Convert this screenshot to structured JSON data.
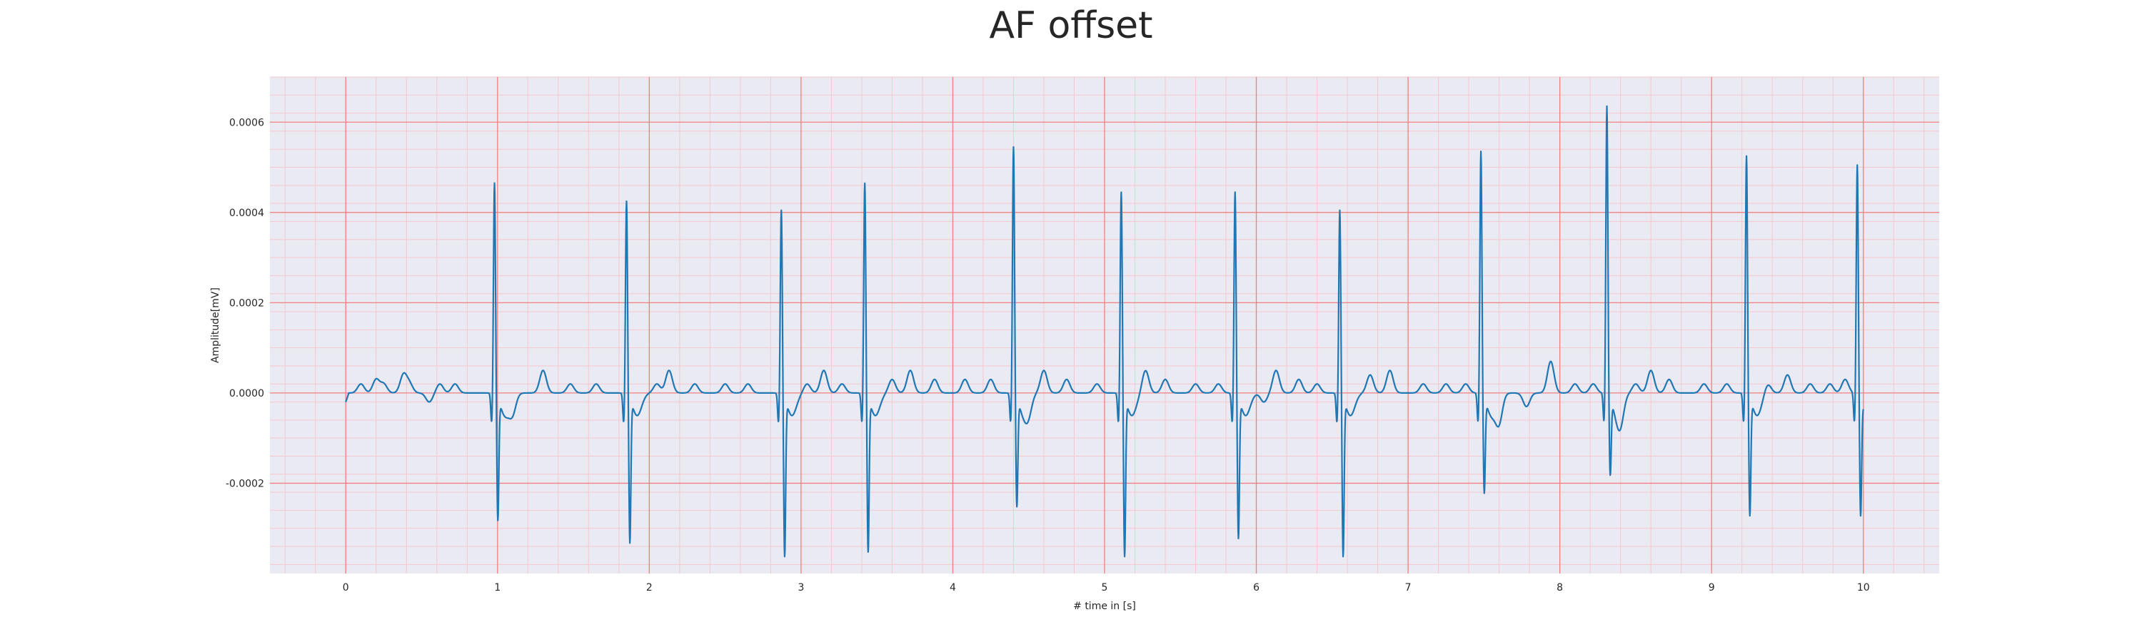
{
  "chart_data": {
    "type": "line",
    "title": "AF offset",
    "xlabel": "# time in [s]",
    "ylabel": "Amplitude[mV]",
    "xlim": [
      -0.5,
      10.5
    ],
    "ylim": [
      -0.0004,
      0.0007
    ],
    "xticks": [
      0,
      1,
      2,
      3,
      4,
      5,
      6,
      7,
      8,
      9,
      10
    ],
    "xtick_labels": [
      "0",
      "1",
      "2",
      "3",
      "4",
      "5",
      "6",
      "7",
      "8",
      "9",
      "10"
    ],
    "yticks": [
      -0.0002,
      0.0,
      0.0002,
      0.0004,
      0.0006
    ],
    "ytick_labels": [
      "-0.0002",
      "0.0000",
      "0.0002",
      "0.0004",
      "0.0006"
    ],
    "grid": true,
    "minor_grid": true,
    "colors": {
      "line": "#1f77b4",
      "background": "#eaeaf2",
      "major_grid": "#f08080",
      "minor_grid": "#f6c6cf"
    },
    "series": [
      {
        "beats": [
          {
            "t": 0.98,
            "r": 0.00047,
            "s": -0.00027
          },
          {
            "t": 1.85,
            "r": 0.00043,
            "s": -0.00032
          },
          {
            "t": 2.87,
            "r": 0.00041,
            "s": -0.00035
          },
          {
            "t": 3.42,
            "r": 0.00047,
            "s": -0.00034
          },
          {
            "t": 4.4,
            "r": 0.00055,
            "s": -0.00024
          },
          {
            "t": 5.11,
            "r": 0.00045,
            "s": -0.00035
          },
          {
            "t": 5.86,
            "r": 0.00045,
            "s": -0.00031
          },
          {
            "t": 6.55,
            "r": 0.00041,
            "s": -0.00035
          },
          {
            "t": 7.48,
            "r": 0.00054,
            "s": -0.00021
          },
          {
            "t": 8.31,
            "r": 0.00064,
            "s": -0.00017
          },
          {
            "t": 9.23,
            "r": 0.00053,
            "s": -0.00026
          },
          {
            "t": 9.96,
            "r": 0.00051,
            "s": -0.00026
          }
        ],
        "baseline_bumps": [
          {
            "t": 0.1,
            "a": 2e-05
          },
          {
            "t": 0.2,
            "a": 3e-05
          },
          {
            "t": 0.25,
            "a": 2e-05
          },
          {
            "t": 0.38,
            "a": 4e-05
          },
          {
            "t": 0.42,
            "a": 2e-05
          },
          {
            "t": 0.55,
            "a": -2e-05
          },
          {
            "t": 0.62,
            "a": 2e-05
          },
          {
            "t": 0.72,
            "a": 2e-05
          },
          {
            "t": 1.1,
            "a": -4e-05
          },
          {
            "t": 1.3,
            "a": 5e-05
          },
          {
            "t": 1.48,
            "a": 2e-05
          },
          {
            "t": 1.65,
            "a": 2e-05
          },
          {
            "t": 2.05,
            "a": 2e-05
          },
          {
            "t": 2.13,
            "a": 5e-05
          },
          {
            "t": 2.3,
            "a": 2e-05
          },
          {
            "t": 2.5,
            "a": 2e-05
          },
          {
            "t": 2.65,
            "a": 2e-05
          },
          {
            "t": 3.04,
            "a": 2e-05
          },
          {
            "t": 3.15,
            "a": 5e-05
          },
          {
            "t": 3.27,
            "a": 2e-05
          },
          {
            "t": 3.6,
            "a": 3e-05
          },
          {
            "t": 3.72,
            "a": 5e-05
          },
          {
            "t": 3.88,
            "a": 3e-05
          },
          {
            "t": 4.08,
            "a": 3e-05
          },
          {
            "t": 4.25,
            "a": 3e-05
          },
          {
            "t": 4.5,
            "a": -3e-05
          },
          {
            "t": 4.6,
            "a": 5e-05
          },
          {
            "t": 4.75,
            "a": 3e-05
          },
          {
            "t": 4.95,
            "a": 2e-05
          },
          {
            "t": 5.27,
            "a": 5e-05
          },
          {
            "t": 5.4,
            "a": 3e-05
          },
          {
            "t": 5.6,
            "a": 2e-05
          },
          {
            "t": 5.75,
            "a": 2e-05
          },
          {
            "t": 6.05,
            "a": -2e-05
          },
          {
            "t": 6.13,
            "a": 5e-05
          },
          {
            "t": 6.28,
            "a": 3e-05
          },
          {
            "t": 6.4,
            "a": 2e-05
          },
          {
            "t": 6.75,
            "a": 4e-05
          },
          {
            "t": 6.88,
            "a": 5e-05
          },
          {
            "t": 7.1,
            "a": 2e-05
          },
          {
            "t": 7.25,
            "a": 2e-05
          },
          {
            "t": 7.38,
            "a": 2e-05
          },
          {
            "t": 7.6,
            "a": -6e-05
          },
          {
            "t": 7.78,
            "a": -3e-05
          },
          {
            "t": 7.94,
            "a": 7e-05
          },
          {
            "t": 8.1,
            "a": 2e-05
          },
          {
            "t": 8.22,
            "a": 2e-05
          },
          {
            "t": 8.4,
            "a": -4e-05
          },
          {
            "t": 8.5,
            "a": 2e-05
          },
          {
            "t": 8.6,
            "a": 5e-05
          },
          {
            "t": 8.72,
            "a": 3e-05
          },
          {
            "t": 8.95,
            "a": 2e-05
          },
          {
            "t": 9.1,
            "a": 2e-05
          },
          {
            "t": 9.37,
            "a": 2e-05
          },
          {
            "t": 9.5,
            "a": 4e-05
          },
          {
            "t": 9.65,
            "a": 2e-05
          },
          {
            "t": 9.78,
            "a": 2e-05
          },
          {
            "t": 9.88,
            "a": 3e-05
          }
        ]
      }
    ]
  }
}
